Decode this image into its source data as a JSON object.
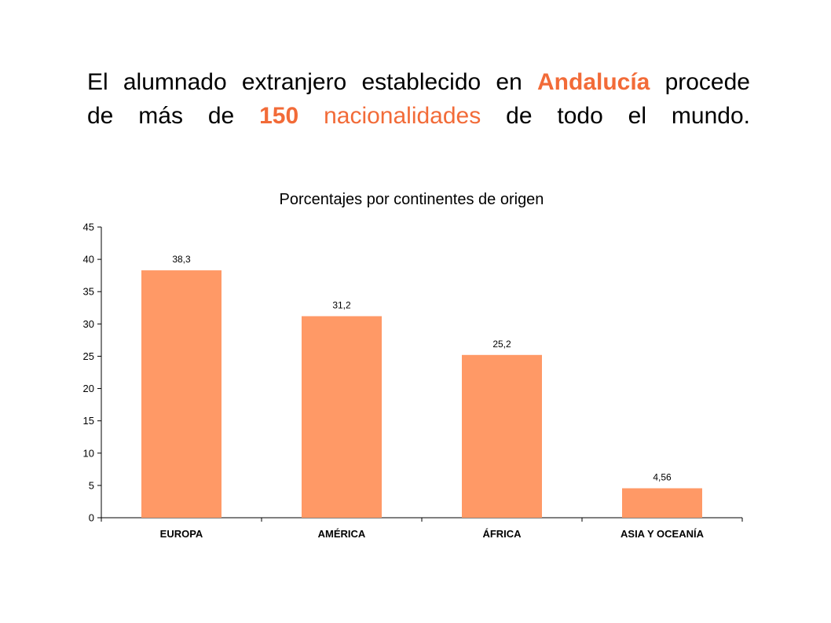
{
  "headline": {
    "line1_a": "El alumnado extranjero establecido en ",
    "line1_b": "Andalucía",
    "line1_c": " procede",
    "line2_a": "de más de ",
    "line2_b": "150",
    "line2_c": " ",
    "line2_d": "nacionalidades",
    "line2_e": " de todo el mundo.",
    "accent_color": "#f26b38"
  },
  "chart_data": {
    "type": "bar",
    "title": "Porcentajes por continentes de origen",
    "categories": [
      "EUROPA",
      "AMÉRICA",
      "ÁFRICA",
      "ASIA Y OCEANÍA"
    ],
    "values": [
      38.3,
      31.2,
      25.2,
      4.56
    ],
    "value_labels": [
      "38,3",
      "31,2",
      "25,2",
      "4,56"
    ],
    "ylim": [
      0,
      45
    ],
    "yticks": [
      0,
      5,
      10,
      15,
      20,
      25,
      30,
      35,
      40,
      45
    ],
    "bar_color": "#ff9966",
    "grid": false,
    "legend": "none",
    "xlabel": "",
    "ylabel": ""
  }
}
